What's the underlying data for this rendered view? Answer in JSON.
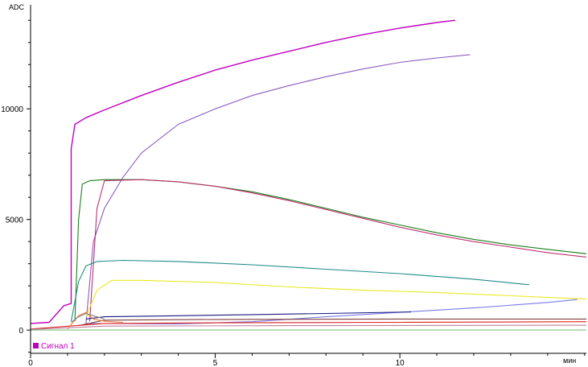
{
  "chart_data": {
    "type": "line",
    "xlabel": "мин",
    "ylabel": "ADC",
    "xlim": [
      0,
      15.05
    ],
    "ylim": [
      -1050,
      14700
    ],
    "x_ticks": [
      0,
      5,
      10
    ],
    "y_ticks": [
      0,
      5000,
      10000
    ],
    "x_tick_labels": [
      "0",
      "5",
      "10"
    ],
    "y_tick_labels": [
      "0",
      "5000",
      "10000"
    ],
    "grid": false,
    "legend": {
      "position": "bottom-left",
      "entries": [
        {
          "name": "Сигнал 1",
          "color": "#c000c0"
        }
      ]
    },
    "series": [
      {
        "name": "Сигнал 1",
        "color": "#c000c0",
        "points": [
          [
            0,
            300
          ],
          [
            0.5,
            350
          ],
          [
            0.9,
            1100
          ],
          [
            1.1,
            1200
          ],
          [
            1.1,
            8200
          ],
          [
            1.2,
            9300
          ],
          [
            1.5,
            9600
          ],
          [
            2,
            9950
          ],
          [
            3,
            10600
          ],
          [
            4,
            11200
          ],
          [
            5,
            11750
          ],
          [
            6,
            12200
          ],
          [
            7,
            12600
          ],
          [
            8,
            13000
          ],
          [
            9,
            13350
          ],
          [
            10,
            13650
          ],
          [
            11,
            13900
          ],
          [
            11.5,
            14000
          ]
        ]
      },
      {
        "color": "#8a5cc0",
        "points": [
          [
            1.5,
            300
          ],
          [
            1.7,
            4000
          ],
          [
            2,
            5500
          ],
          [
            2.5,
            6900
          ],
          [
            3,
            8000
          ],
          [
            4,
            9300
          ],
          [
            5,
            10000
          ],
          [
            6,
            10600
          ],
          [
            7,
            11050
          ],
          [
            8,
            11450
          ],
          [
            9,
            11800
          ],
          [
            10,
            12100
          ],
          [
            11,
            12300
          ],
          [
            11.9,
            12450
          ]
        ]
      },
      {
        "color": "#1a7f1a",
        "points": [
          [
            1.2,
            400
          ],
          [
            1.3,
            5000
          ],
          [
            1.4,
            6600
          ],
          [
            1.6,
            6750
          ],
          [
            2,
            6800
          ],
          [
            3,
            6800
          ],
          [
            4,
            6700
          ],
          [
            5,
            6500
          ],
          [
            6,
            6250
          ],
          [
            7,
            5900
          ],
          [
            8,
            5500
          ],
          [
            9,
            5100
          ],
          [
            10,
            4750
          ],
          [
            11,
            4400
          ],
          [
            12,
            4100
          ],
          [
            13,
            3850
          ],
          [
            14,
            3650
          ],
          [
            15.05,
            3450
          ]
        ]
      },
      {
        "color": "#c03070",
        "points": [
          [
            1.6,
            400
          ],
          [
            1.8,
            5500
          ],
          [
            2,
            6750
          ],
          [
            3,
            6800
          ],
          [
            4,
            6700
          ],
          [
            5,
            6500
          ],
          [
            6,
            6200
          ],
          [
            7,
            5850
          ],
          [
            8,
            5450
          ],
          [
            9,
            5050
          ],
          [
            10,
            4650
          ],
          [
            11,
            4300
          ],
          [
            12,
            4000
          ],
          [
            13,
            3750
          ],
          [
            14,
            3500
          ],
          [
            15.05,
            3300
          ]
        ]
      },
      {
        "color": "#1f8a8a",
        "points": [
          [
            1.1,
            400
          ],
          [
            1.3,
            2200
          ],
          [
            1.5,
            2900
          ],
          [
            1.8,
            3100
          ],
          [
            2.5,
            3150
          ],
          [
            4,
            3100
          ],
          [
            6,
            2950
          ],
          [
            8,
            2750
          ],
          [
            10,
            2550
          ],
          [
            12,
            2300
          ],
          [
            13.5,
            2050
          ]
        ]
      },
      {
        "color": "#e8e820",
        "points": [
          [
            1.5,
            600
          ],
          [
            1.8,
            1800
          ],
          [
            2.2,
            2250
          ],
          [
            3,
            2250
          ],
          [
            5,
            2150
          ],
          [
            7,
            1950
          ],
          [
            9,
            1800
          ],
          [
            11,
            1700
          ],
          [
            13,
            1550
          ],
          [
            15.05,
            1400
          ]
        ]
      },
      {
        "color": "#7a7ae8",
        "points": [
          [
            1.5,
            300
          ],
          [
            4,
            280
          ],
          [
            6,
            380
          ],
          [
            8,
            600
          ],
          [
            10,
            800
          ],
          [
            12,
            1000
          ],
          [
            14,
            1250
          ],
          [
            14.8,
            1380
          ]
        ]
      },
      {
        "color": "#1a1a80",
        "points": [
          [
            1.5,
            500
          ],
          [
            2,
            600
          ],
          [
            4,
            650
          ],
          [
            6,
            700
          ],
          [
            8,
            750
          ],
          [
            10.3,
            820
          ]
        ]
      },
      {
        "color": "#804040",
        "points": [
          [
            1.3,
            200
          ],
          [
            2,
            450
          ],
          [
            5,
            480
          ],
          [
            10,
            500
          ],
          [
            15.05,
            500
          ]
        ]
      },
      {
        "color": "#e02020",
        "points": [
          [
            0,
            50
          ],
          [
            2,
            300
          ],
          [
            5,
            330
          ],
          [
            10,
            350
          ],
          [
            15.05,
            380
          ]
        ]
      },
      {
        "color": "#c080a0",
        "points": [
          [
            0,
            30
          ],
          [
            2,
            180
          ],
          [
            7,
            200
          ],
          [
            15.05,
            220
          ]
        ]
      },
      {
        "color": "#80c080",
        "points": [
          [
            0,
            0
          ],
          [
            5,
            0
          ],
          [
            15.05,
            0
          ]
        ]
      },
      {
        "color": "#e08040",
        "points": [
          [
            1,
            50
          ],
          [
            1.3,
            650
          ],
          [
            1.5,
            800
          ],
          [
            1.7,
            500
          ],
          [
            2,
            400
          ],
          [
            2.5,
            350
          ]
        ]
      },
      {
        "color": "#808080",
        "points": [
          [
            1.1,
            350
          ],
          [
            1.3,
            600
          ],
          [
            1.5,
            750
          ],
          [
            1.7,
            650
          ],
          [
            2,
            500
          ]
        ]
      }
    ]
  }
}
